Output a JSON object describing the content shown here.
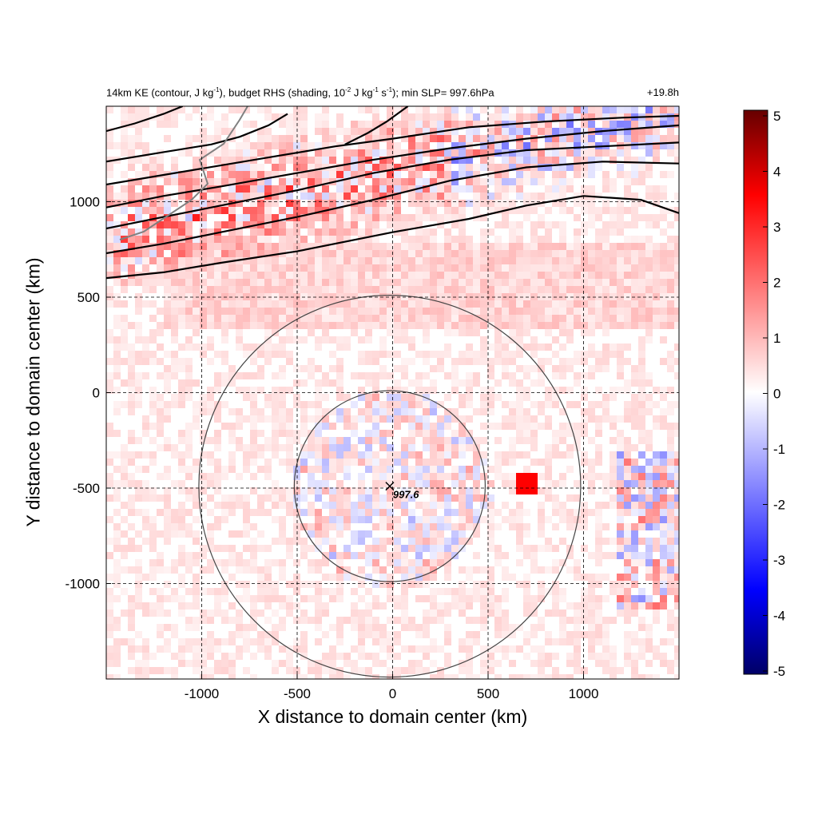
{
  "title": {
    "text_a": "14km KE (contour, J kg",
    "sup_a": "-1",
    "text_b": "), budget RHS (shading, 10",
    "sup_b": "-2",
    "text_c": " J kg",
    "sup_c": "-1",
    "text_d": " s",
    "sup_d": "-1",
    "text_e": "); min SLP= 997.6hPa",
    "forecast_time": "+19.8h"
  },
  "chart_data": {
    "type": "heatmap",
    "xlabel": "X distance to domain center (km)",
    "ylabel": "Y distance to domain center (km)",
    "xlim": [
      -1500,
      1500
    ],
    "ylim": [
      -1500,
      1500
    ],
    "xticks": [
      -1000,
      -500,
      0,
      500,
      1000
    ],
    "yticks": [
      -1000,
      -500,
      0,
      500,
      1000
    ],
    "grid": true,
    "grid_style": "dashed",
    "colorbar": {
      "range": [
        -5,
        5
      ],
      "ticks": [
        5,
        4,
        3,
        2,
        1,
        0,
        -1,
        -2,
        -3,
        -4,
        -5
      ],
      "colormap": [
        "#000066",
        "#0000ff",
        "#ffffff",
        "#ff0000",
        "#660000"
      ]
    },
    "storm_center": {
      "x": -15,
      "y": -490,
      "label": "997.6"
    },
    "range_rings_km": [
      500,
      1000
    ],
    "ke_contours": [
      [
        [
          -1500,
          600
        ],
        [
          -1200,
          630
        ],
        [
          -900,
          680
        ],
        [
          -500,
          740
        ],
        [
          0,
          840
        ],
        [
          400,
          910
        ],
        [
          700,
          980
        ],
        [
          1000,
          1030
        ],
        [
          1300,
          1010
        ],
        [
          1500,
          940
        ]
      ],
      [
        [
          -1500,
          730
        ],
        [
          -1200,
          780
        ],
        [
          -900,
          840
        ],
        [
          -500,
          920
        ],
        [
          -100,
          1010
        ],
        [
          300,
          1110
        ],
        [
          700,
          1180
        ],
        [
          1100,
          1210
        ],
        [
          1500,
          1200
        ]
      ],
      [
        [
          -1500,
          860
        ],
        [
          -1200,
          920
        ],
        [
          -900,
          980
        ],
        [
          -500,
          1060
        ],
        [
          -100,
          1150
        ],
        [
          300,
          1220
        ],
        [
          700,
          1270
        ],
        [
          1100,
          1290
        ],
        [
          1500,
          1310
        ]
      ],
      [
        [
          -1500,
          970
        ],
        [
          -1200,
          1030
        ],
        [
          -900,
          1080
        ],
        [
          -500,
          1150
        ],
        [
          -100,
          1220
        ],
        [
          300,
          1280
        ],
        [
          700,
          1330
        ],
        [
          1100,
          1370
        ],
        [
          1500,
          1400
        ]
      ],
      [
        [
          -1500,
          1090
        ],
        [
          -1200,
          1140
        ],
        [
          -900,
          1190
        ],
        [
          -600,
          1240
        ],
        [
          -300,
          1290
        ],
        [
          0,
          1330
        ],
        [
          400,
          1390
        ],
        [
          800,
          1420
        ],
        [
          1200,
          1440
        ],
        [
          1500,
          1450
        ]
      ],
      [
        [
          -1500,
          1210
        ],
        [
          -1200,
          1260
        ],
        [
          -950,
          1300
        ],
        [
          -800,
          1340
        ],
        [
          -650,
          1400
        ],
        [
          -550,
          1460
        ]
      ],
      [
        [
          -1500,
          1370
        ],
        [
          -1350,
          1410
        ],
        [
          -1200,
          1460
        ],
        [
          -1100,
          1500
        ]
      ],
      [
        [
          -250,
          1300
        ],
        [
          -130,
          1360
        ],
        [
          -30,
          1420
        ],
        [
          80,
          1500
        ]
      ]
    ]
  }
}
